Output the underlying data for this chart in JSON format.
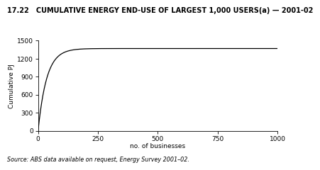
{
  "title": "17.22   CUMULATIVE ENERGY END-USE OF LARGEST 1,000 USERS(a) — 2001-02",
  "ylabel": "Cumulative PJ",
  "xlabel": "no. of businesses",
  "source": "Source: ABS data available on request, Energy Survey 2001–02.",
  "xlim": [
    0,
    1000
  ],
  "ylim": [
    0,
    1500
  ],
  "xticks": [
    0,
    250,
    500,
    750,
    1000
  ],
  "yticks": [
    0,
    300,
    600,
    900,
    1200,
    1500
  ],
  "line_color": "#000000",
  "line_width": 0.9,
  "bg_color": "#ffffff",
  "title_fontsize": 7.0,
  "label_fontsize": 6.5,
  "tick_fontsize": 6.5,
  "source_fontsize": 5.8,
  "curve_max": 1370,
  "curve_shape": 0.028
}
